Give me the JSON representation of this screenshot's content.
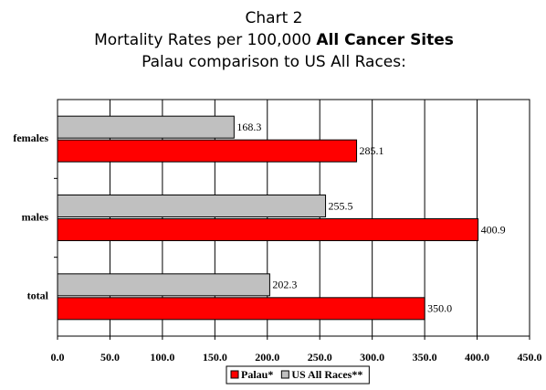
{
  "chart_data": {
    "type": "hbar",
    "title": "Chart 2",
    "subtitle": "Mortality Rates per 100,000",
    "subtitle_bold": "All Cancer Sites",
    "subtitle2": "Palau comparison to US All Races:",
    "categories": [
      "females",
      "males",
      "total"
    ],
    "series": [
      {
        "name": "US All Races**",
        "color": "#c0c0c0",
        "values": [
          168.3,
          255.5,
          202.3
        ],
        "value_labels": [
          "168.3",
          "255.5",
          "202.3"
        ]
      },
      {
        "name": "Palau*",
        "color": "#ff0000",
        "values": [
          285.1,
          400.9,
          350.0
        ],
        "value_labels": [
          "285.1",
          "400.9",
          "350.0"
        ]
      }
    ],
    "legend_order": [
      1,
      0
    ],
    "xlim": [
      0,
      450
    ],
    "xticks": [
      {
        "value": 0,
        "label": "0.0"
      },
      {
        "value": 50,
        "label": "50.0"
      },
      {
        "value": 100,
        "label": "100.0"
      },
      {
        "value": 150,
        "label": "150.0"
      },
      {
        "value": 200,
        "label": "200.0"
      },
      {
        "value": 250,
        "label": "250.0"
      },
      {
        "value": 300,
        "label": "300.0"
      },
      {
        "value": 350,
        "label": "350.0"
      },
      {
        "value": 400,
        "label": "400.0"
      },
      {
        "value": 450,
        "label": "450.0"
      }
    ],
    "grid": true,
    "legend": "bottom"
  }
}
